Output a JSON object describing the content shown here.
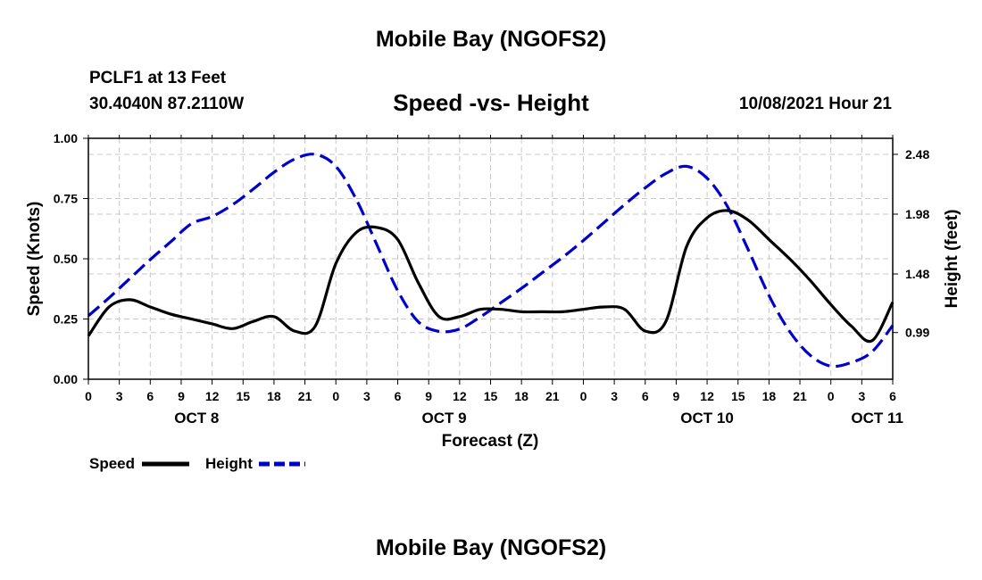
{
  "header": {
    "title": "Mobile Bay (NGOFS2)",
    "footer_title": "Mobile Bay (NGOFS2)",
    "station": "PCLF1 at 13 Feet",
    "coords": "30.4040N  87.2110W",
    "datetime": "10/08/2021 Hour 21"
  },
  "chart_data": {
    "type": "line",
    "title": "Speed -vs- Height",
    "xlabel": "Forecast (Z)",
    "ylabel": "Speed (Knots)",
    "y2label": "Height (feet)",
    "ylim": [
      0,
      1
    ],
    "y2lim": [
      0.6,
      2.614
    ],
    "xlim": [
      0,
      78
    ],
    "yticks": [
      {
        "v": 0.0,
        "label": "0.00"
      },
      {
        "v": 0.25,
        "label": "0.25"
      },
      {
        "v": 0.5,
        "label": "0.50"
      },
      {
        "v": 0.75,
        "label": "0.75"
      },
      {
        "v": 1.0,
        "label": "1.00"
      }
    ],
    "y2ticks": [
      {
        "v": 0.99,
        "label": "0.99"
      },
      {
        "v": 1.48,
        "label": "1.48"
      },
      {
        "v": 1.98,
        "label": "1.98"
      },
      {
        "v": 2.48,
        "label": "2.48"
      }
    ],
    "xticks": [
      "0",
      "3",
      "6",
      "9",
      "12",
      "15",
      "18",
      "21",
      "0",
      "3",
      "6",
      "9",
      "12",
      "15",
      "18",
      "21",
      "0",
      "3",
      "6",
      "9",
      "12",
      "15",
      "18",
      "21",
      "0",
      "3",
      "6"
    ],
    "day_labels": [
      {
        "hour": 10.5,
        "label": "OCT 8"
      },
      {
        "hour": 34.5,
        "label": "OCT 9"
      },
      {
        "hour": 60.0,
        "label": "OCT 10"
      },
      {
        "hour": 76.5,
        "label": "OCT 11"
      }
    ],
    "grid": true,
    "series": [
      {
        "name": "Speed",
        "axis": "left",
        "color": "#000000",
        "style": "solid",
        "x": [
          0,
          2,
          4,
          6,
          8,
          10,
          12,
          14,
          16,
          18,
          20,
          22,
          24,
          26,
          28,
          30,
          32,
          34,
          36,
          38,
          40,
          42,
          44,
          46,
          48,
          50,
          52,
          54,
          56,
          58,
          60,
          62,
          64,
          66,
          68,
          70,
          72,
          74,
          76,
          78
        ],
        "values": [
          0.18,
          0.3,
          0.33,
          0.3,
          0.27,
          0.25,
          0.23,
          0.21,
          0.24,
          0.26,
          0.2,
          0.22,
          0.48,
          0.61,
          0.63,
          0.58,
          0.4,
          0.26,
          0.26,
          0.29,
          0.29,
          0.28,
          0.28,
          0.28,
          0.29,
          0.3,
          0.29,
          0.2,
          0.24,
          0.55,
          0.67,
          0.7,
          0.66,
          0.58,
          0.5,
          0.41,
          0.31,
          0.22,
          0.16,
          0.32
        ]
      },
      {
        "name": "Height",
        "axis": "right",
        "color": "#0000cc",
        "style": "dashed",
        "x": [
          0,
          2,
          4,
          6,
          8,
          10,
          12,
          14,
          16,
          18,
          20,
          22,
          24,
          26,
          28,
          30,
          32,
          34,
          36,
          38,
          40,
          42,
          44,
          46,
          48,
          50,
          52,
          54,
          56,
          58,
          60,
          62,
          64,
          66,
          68,
          70,
          72,
          74,
          76,
          78
        ],
        "values": [
          1.13,
          1.28,
          1.44,
          1.6,
          1.75,
          1.9,
          1.96,
          2.06,
          2.19,
          2.33,
          2.44,
          2.48,
          2.38,
          2.1,
          1.72,
          1.34,
          1.08,
          1.0,
          1.02,
          1.12,
          1.24,
          1.36,
          1.49,
          1.62,
          1.76,
          1.91,
          2.06,
          2.2,
          2.32,
          2.38,
          2.28,
          2.04,
          1.68,
          1.3,
          1.0,
          0.8,
          0.71,
          0.74,
          0.83,
          1.05
        ]
      }
    ]
  }
}
